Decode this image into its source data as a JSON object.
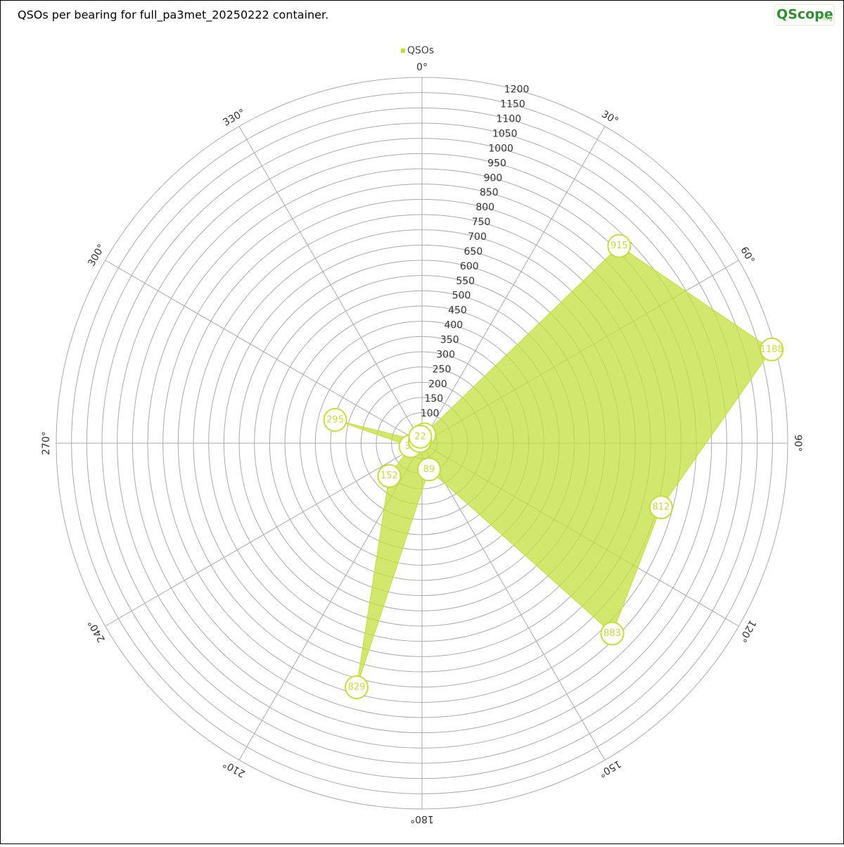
{
  "chart_data": {
    "type": "polar",
    "title": "QSOs per bearing for full_pa3met_20250222 container.",
    "logo": "QScope",
    "logo_suffix": ".org",
    "x": [
      15,
      45,
      75,
      105,
      135,
      165,
      195,
      225,
      255,
      285,
      315,
      345
    ],
    "series": [
      {
        "name": "QSOs",
        "color": "#c2df3c",
        "values": [
          30,
          915,
          1188,
          812,
          883,
          89,
          829,
          152,
          39,
          295,
          10,
          22
        ]
      }
    ],
    "xlim": [
      0,
      360
    ],
    "xticks": [
      {
        "value": 0,
        "label": "0°"
      },
      {
        "value": 30,
        "label": "30°"
      },
      {
        "value": 60,
        "label": "60°"
      },
      {
        "value": 90,
        "label": "90°"
      },
      {
        "value": 120,
        "label": "120°"
      },
      {
        "value": 150,
        "label": "150°"
      },
      {
        "value": 180,
        "label": "180°"
      },
      {
        "value": 210,
        "label": "210°"
      },
      {
        "value": 240,
        "label": "240°"
      },
      {
        "value": 270,
        "label": "270°"
      },
      {
        "value": 300,
        "label": "300°"
      },
      {
        "value": 330,
        "label": "330°"
      }
    ],
    "ylim": [
      0,
      1200
    ],
    "yticks": [
      50,
      100,
      150,
      200,
      250,
      300,
      350,
      400,
      450,
      500,
      550,
      600,
      650,
      700,
      750,
      800,
      850,
      900,
      950,
      1000,
      1050,
      1100,
      1150,
      1200
    ],
    "grid": true
  }
}
